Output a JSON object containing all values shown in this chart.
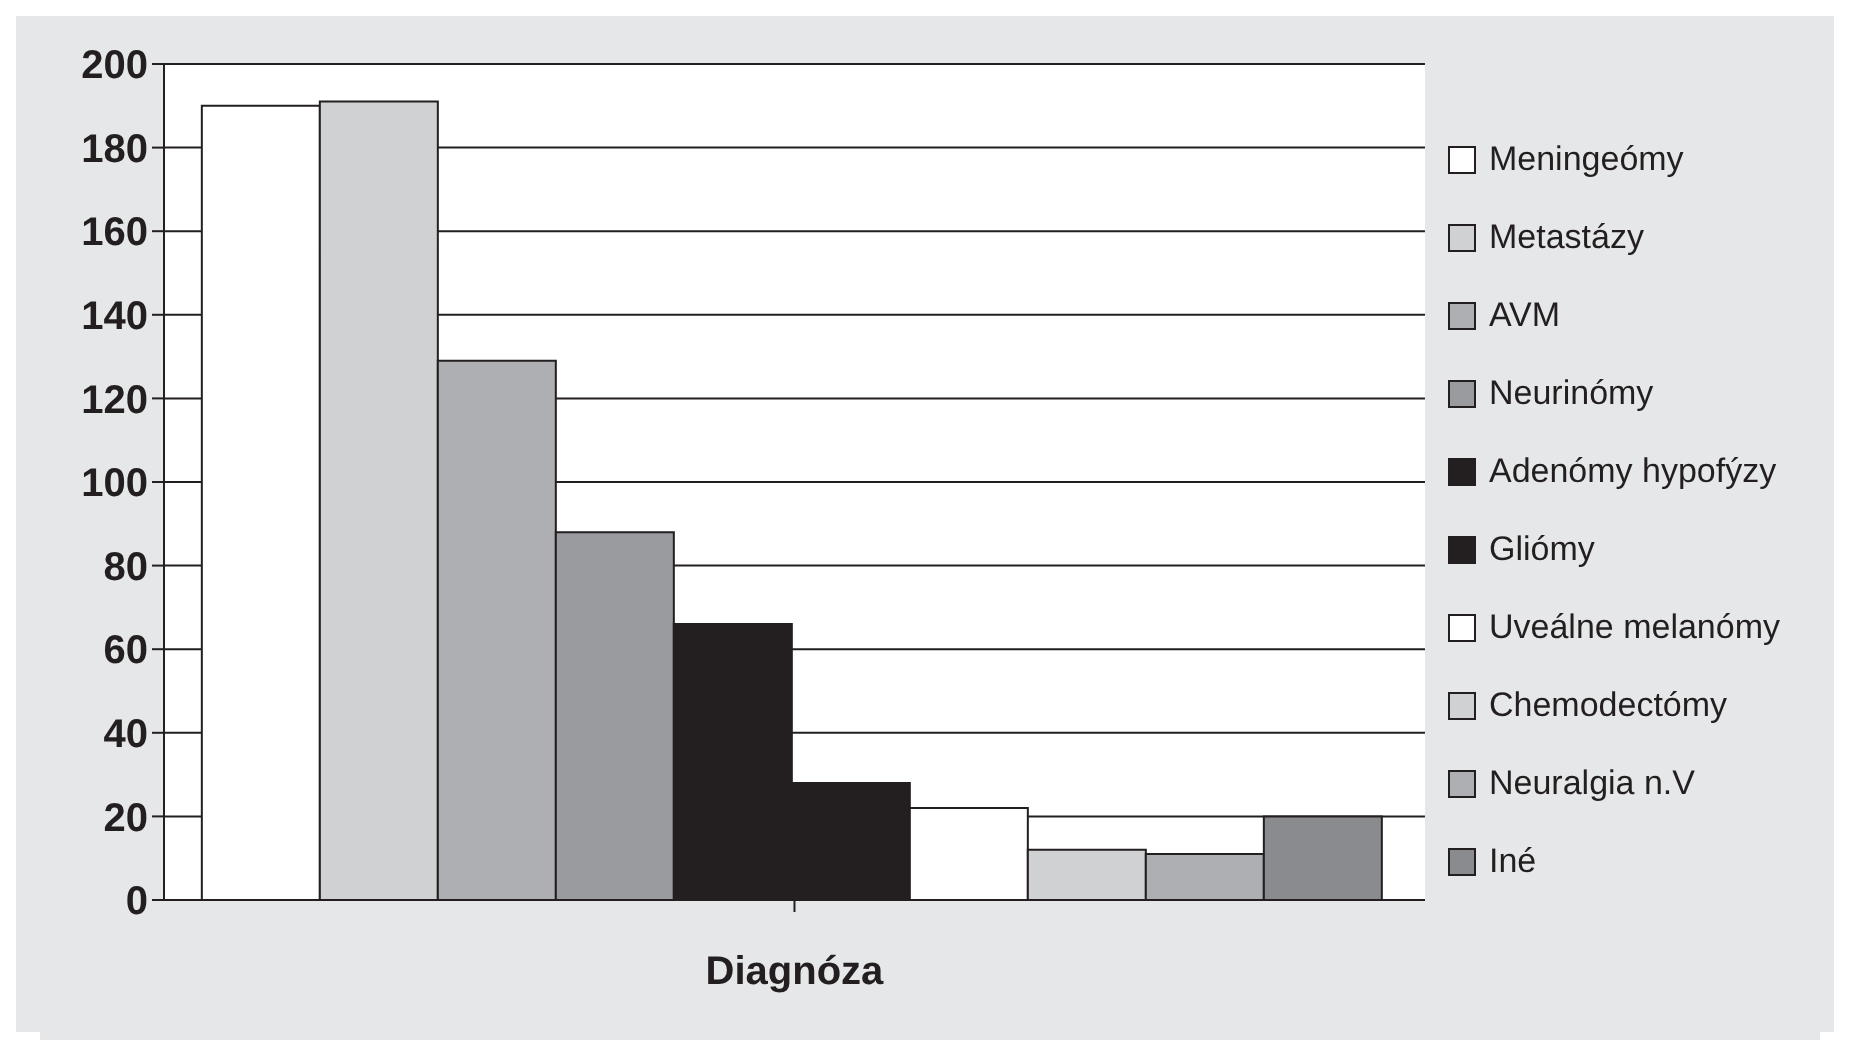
{
  "chart_data": {
    "type": "bar",
    "xlabel": "Diagnóza",
    "categories": [
      null
    ],
    "series": [
      {
        "name": "Meningeómy",
        "color": "#ffffff",
        "values": [
          190
        ]
      },
      {
        "name": "Metastázy",
        "color": "#d0d1d3",
        "values": [
          191
        ]
      },
      {
        "name": "AVM",
        "color": "#aeafb2",
        "values": [
          129
        ]
      },
      {
        "name": "Neurinómy",
        "color": "#9a9b9f",
        "values": [
          88
        ]
      },
      {
        "name": "Adenómy hypofýzy",
        "color": "#231f20",
        "values": [
          66
        ]
      },
      {
        "name": "Gliómy",
        "color": "#231f20",
        "values": [
          28
        ]
      },
      {
        "name": "Uveálne melanómy",
        "color": "#ffffff",
        "values": [
          22
        ]
      },
      {
        "name": "Chemodectómy",
        "color": "#d0d1d3",
        "values": [
          12
        ]
      },
      {
        "name": "Neuralgia n.V",
        "color": "#aeafb2",
        "values": [
          11
        ]
      },
      {
        "name": "Iné",
        "color": "#8a8b8f",
        "values": [
          20
        ]
      }
    ],
    "ylim": [
      0,
      200
    ],
    "yticks": [
      0,
      20,
      40,
      60,
      80,
      100,
      120,
      140,
      160,
      180,
      200
    ],
    "grid": "y",
    "legend": "right"
  }
}
